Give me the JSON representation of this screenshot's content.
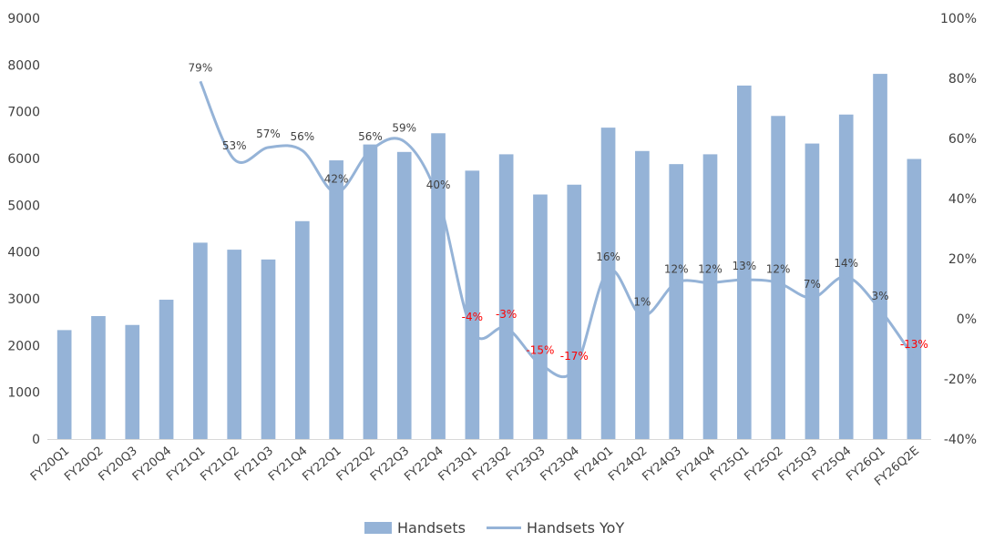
{
  "chart_data": {
    "type": "bar+line",
    "categories": [
      "FY20Q1",
      "FY20Q2",
      "FY20Q3",
      "FY20Q4",
      "FY21Q1",
      "FY21Q2",
      "FY21Q3",
      "FY21Q4",
      "FY22Q1",
      "FY22Q2",
      "FY22Q3",
      "FY22Q4",
      "FY23Q1",
      "FY23Q2",
      "FY23Q3",
      "FY23Q4",
      "FY24Q1",
      "FY24Q2",
      "FY24Q3",
      "FY24Q4",
      "FY25Q1",
      "FY25Q2",
      "FY25Q3",
      "FY25Q4",
      "FY26Q1",
      "FY26Q2E"
    ],
    "series": [
      {
        "name": "Handsets",
        "type": "bar",
        "axis": "left",
        "color": "#95B3D7",
        "values": [
          2330,
          2630,
          2440,
          2980,
          4200,
          4050,
          3840,
          4660,
          5960,
          6300,
          6140,
          6540,
          5740,
          6090,
          5230,
          5440,
          6660,
          6160,
          5880,
          6090,
          7560,
          6910,
          6320,
          6940,
          7810,
          5990
        ]
      },
      {
        "name": "Handsets YoY",
        "type": "line",
        "axis": "right",
        "color": "#95B3D7",
        "values": [
          null,
          null,
          null,
          null,
          79,
          53,
          57,
          56,
          42,
          56,
          59,
          40,
          -4,
          -3,
          -15,
          -17,
          16,
          1,
          12,
          12,
          13,
          12,
          7,
          14,
          3,
          -13
        ],
        "labels": [
          null,
          null,
          null,
          null,
          "79%",
          "53%",
          "57%",
          "56%",
          "42%",
          "56%",
          "59%",
          "40%",
          "-4%",
          "-3%",
          "-15%",
          "-17%",
          "16%",
          "1%",
          "12%",
          "12%",
          "13%",
          "12%",
          "7%",
          "14%",
          "3%",
          "-13%"
        ]
      }
    ],
    "y_left": {
      "min": 0,
      "max": 9000,
      "step": 1000,
      "ticks": [
        "0",
        "1000",
        "2000",
        "3000",
        "4000",
        "5000",
        "6000",
        "7000",
        "8000",
        "9000"
      ]
    },
    "y_right": {
      "min": -40,
      "max": 100,
      "step": 20,
      "ticks": [
        "-40%",
        "-20%",
        "0%",
        "20%",
        "40%",
        "60%",
        "80%",
        "100%"
      ]
    },
    "negative_label_color": "#FF0000",
    "positive_label_color": "#404040",
    "grid": false,
    "legend": {
      "position": "bottom",
      "entries": [
        "Handsets",
        "Handsets YoY"
      ]
    }
  }
}
